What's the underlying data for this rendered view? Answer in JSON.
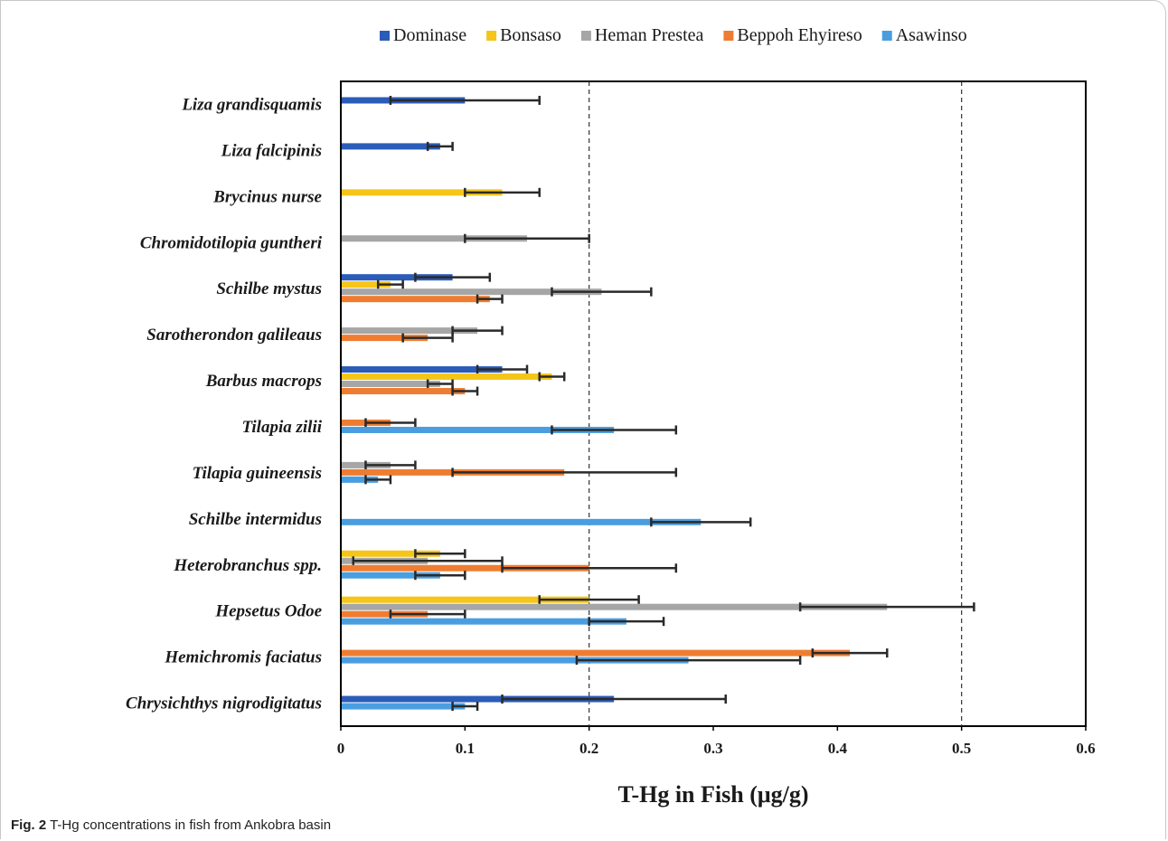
{
  "caption": {
    "label": "Fig. 2",
    "text": "T-Hg concentrations in fish from Ankobra basin"
  },
  "chart_data": {
    "type": "bar",
    "orientation": "horizontal",
    "xlabel": "T-Hg in Fish (μg/g)",
    "xlim": [
      0,
      0.6
    ],
    "xticks": [
      "0",
      "0.1",
      "0.2",
      "0.3",
      "0.4",
      "0.5",
      "0.6"
    ],
    "reference_lines": [
      0.2,
      0.5
    ],
    "legend_position": "top",
    "categories": [
      "Liza grandisquamis",
      "Liza falcipinis",
      "Brycinus nurse",
      "Chromidotilopia guntheri",
      "Schilbe mystus",
      "Sarotherondon galileaus",
      "Barbus macrops",
      "Tilapia zilii",
      "Tilapia guineensis",
      "Schilbe intermidus",
      "Heterobranchus spp.",
      "Hepsetus Odoe",
      "Hemichromis faciatus",
      "Chrysichthys nigrodigitatus"
    ],
    "series": [
      {
        "name": "Dominase",
        "color": "#2b5cb8",
        "values": [
          0.1,
          0.08,
          null,
          null,
          0.09,
          null,
          0.13,
          null,
          null,
          null,
          null,
          null,
          null,
          0.22
        ],
        "errors": [
          0.06,
          0.01,
          null,
          null,
          0.03,
          null,
          0.02,
          null,
          null,
          null,
          null,
          null,
          null,
          0.09
        ]
      },
      {
        "name": "Bonsaso",
        "color": "#f5c518",
        "values": [
          null,
          null,
          0.13,
          null,
          0.04,
          null,
          0.17,
          null,
          null,
          null,
          0.08,
          0.2,
          null,
          null
        ],
        "errors": [
          null,
          null,
          0.03,
          null,
          0.01,
          null,
          0.01,
          null,
          null,
          null,
          0.02,
          0.04,
          null,
          null
        ]
      },
      {
        "name": "Heman Prestea",
        "color": "#a6a6a6",
        "values": [
          null,
          null,
          null,
          0.15,
          0.21,
          0.11,
          0.08,
          null,
          0.04,
          null,
          0.07,
          0.44,
          null,
          null
        ],
        "errors": [
          null,
          null,
          null,
          0.05,
          0.04,
          0.02,
          0.01,
          null,
          0.02,
          null,
          0.06,
          0.07,
          null,
          null
        ]
      },
      {
        "name": "Beppoh Ehyireso",
        "color": "#ef7d31",
        "values": [
          null,
          null,
          null,
          null,
          0.12,
          0.07,
          0.1,
          0.04,
          0.18,
          null,
          0.2,
          0.07,
          0.41,
          null
        ],
        "errors": [
          null,
          null,
          null,
          null,
          0.01,
          0.02,
          0.01,
          0.02,
          0.09,
          null,
          0.07,
          0.03,
          0.03,
          null
        ]
      },
      {
        "name": "Asawinso",
        "color": "#4a9ee0",
        "values": [
          null,
          null,
          null,
          null,
          null,
          null,
          null,
          0.22,
          0.03,
          0.29,
          0.08,
          0.23,
          0.28,
          0.1
        ],
        "errors": [
          null,
          null,
          null,
          null,
          null,
          null,
          null,
          0.05,
          0.01,
          0.04,
          0.02,
          0.03,
          0.09,
          0.01
        ]
      }
    ]
  }
}
